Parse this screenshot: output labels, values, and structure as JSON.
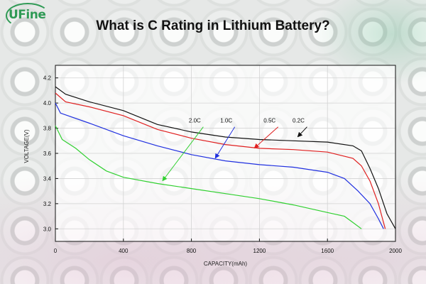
{
  "logo": {
    "text": "UFine"
  },
  "title": "What is C Rating in Lithium Battery?",
  "chart_data": {
    "type": "line",
    "title": "What is C Rating in Lithium Battery?",
    "xlabel": "CAPACITY(mAh)",
    "ylabel": "VOLTAGE(V)",
    "xlim": [
      0,
      2000
    ],
    "ylim": [
      2.9,
      4.3
    ],
    "xticks": [
      0,
      400,
      800,
      1200,
      1600,
      2000
    ],
    "yticks": [
      3.0,
      3.2,
      3.4,
      3.6,
      3.8,
      4.0,
      4.2
    ],
    "grid": true,
    "series": [
      {
        "name": "0.2C",
        "color": "#111111",
        "points": [
          [
            0,
            4.13
          ],
          [
            60,
            4.07
          ],
          [
            200,
            4.01
          ],
          [
            400,
            3.94
          ],
          [
            600,
            3.83
          ],
          [
            800,
            3.77
          ],
          [
            1000,
            3.73
          ],
          [
            1200,
            3.71
          ],
          [
            1400,
            3.7
          ],
          [
            1600,
            3.69
          ],
          [
            1750,
            3.66
          ],
          [
            1800,
            3.62
          ],
          [
            1850,
            3.48
          ],
          [
            1900,
            3.32
          ],
          [
            1950,
            3.12
          ],
          [
            2000,
            3.0
          ]
        ],
        "label_point": [
          1425,
          3.72
        ],
        "label_anchor": [
          1480,
          3.85
        ]
      },
      {
        "name": "0.5C",
        "color": "#e02020",
        "points": [
          [
            0,
            4.08
          ],
          [
            60,
            4.01
          ],
          [
            200,
            3.97
          ],
          [
            400,
            3.9
          ],
          [
            600,
            3.79
          ],
          [
            800,
            3.72
          ],
          [
            1000,
            3.67
          ],
          [
            1200,
            3.64
          ],
          [
            1400,
            3.63
          ],
          [
            1600,
            3.61
          ],
          [
            1750,
            3.56
          ],
          [
            1800,
            3.5
          ],
          [
            1850,
            3.38
          ],
          [
            1900,
            3.2
          ],
          [
            1940,
            3.0
          ]
        ],
        "label_point": [
          1170,
          3.63
        ],
        "label_anchor": [
          1310,
          3.85
        ]
      },
      {
        "name": "1.0C",
        "color": "#2030e0",
        "points": [
          [
            0,
            4.0
          ],
          [
            30,
            3.92
          ],
          [
            200,
            3.84
          ],
          [
            400,
            3.74
          ],
          [
            600,
            3.66
          ],
          [
            800,
            3.59
          ],
          [
            1000,
            3.54
          ],
          [
            1200,
            3.51
          ],
          [
            1400,
            3.49
          ],
          [
            1600,
            3.45
          ],
          [
            1700,
            3.4
          ],
          [
            1780,
            3.3
          ],
          [
            1850,
            3.2
          ],
          [
            1900,
            3.08
          ],
          [
            1930,
            3.0
          ]
        ],
        "label_point": [
          940,
          3.55
        ],
        "label_anchor": [
          1055,
          3.85
        ]
      },
      {
        "name": "2.0C",
        "color": "#30d030",
        "points": [
          [
            0,
            3.82
          ],
          [
            40,
            3.71
          ],
          [
            120,
            3.64
          ],
          [
            200,
            3.55
          ],
          [
            300,
            3.46
          ],
          [
            400,
            3.41
          ],
          [
            600,
            3.36
          ],
          [
            800,
            3.32
          ],
          [
            1000,
            3.28
          ],
          [
            1200,
            3.24
          ],
          [
            1400,
            3.19
          ],
          [
            1600,
            3.13
          ],
          [
            1700,
            3.1
          ],
          [
            1750,
            3.05
          ],
          [
            1800,
            3.0
          ]
        ],
        "label_point": [
          630,
          3.37
        ],
        "label_anchor": [
          870,
          3.85
        ]
      }
    ]
  }
}
